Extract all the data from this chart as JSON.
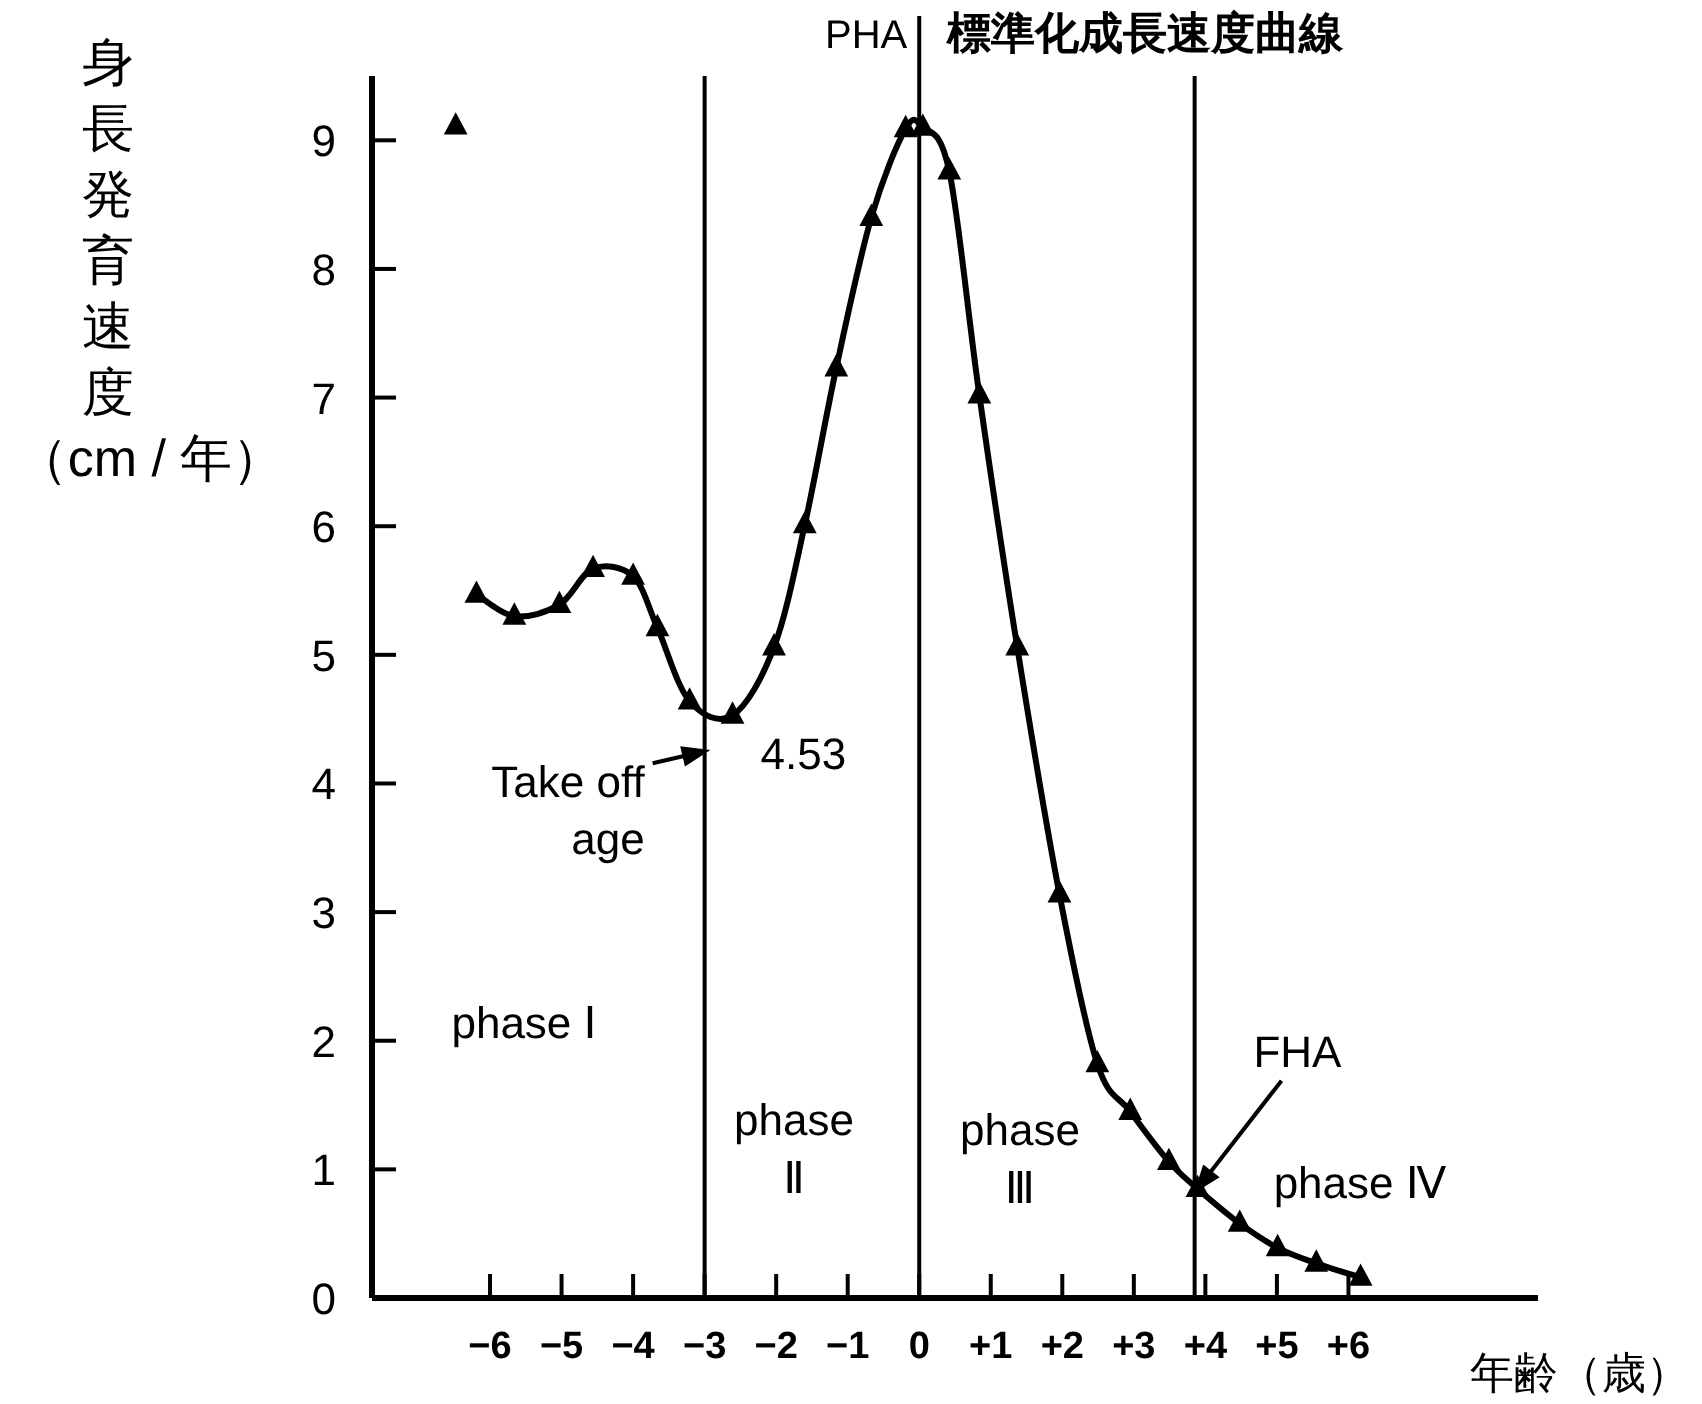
{
  "chart_data": {
    "type": "line",
    "title": "標準化成長速度曲線",
    "xlabel": "年齢（歳）",
    "ylabel": "身長発育速度（cm / 年）",
    "xlim": [
      -7.65,
      8.65
    ],
    "ylim": [
      0,
      9.5
    ],
    "xticks": [
      {
        "value": -6,
        "label": "−6"
      },
      {
        "value": -5,
        "label": "−5"
      },
      {
        "value": -4,
        "label": "−4"
      },
      {
        "value": -3,
        "label": "−3"
      },
      {
        "value": -2,
        "label": "−2"
      },
      {
        "value": -1,
        "label": "−1"
      },
      0,
      {
        "value": 1,
        "label": "+1"
      },
      {
        "value": 2,
        "label": "+2"
      },
      {
        "value": 3,
        "label": "+3"
      },
      {
        "value": 4,
        "label": "+4"
      },
      {
        "value": 5,
        "label": "+5"
      },
      {
        "value": 6,
        "label": "+6"
      }
    ],
    "yticks": [
      0,
      1,
      2,
      3,
      4,
      5,
      6,
      7,
      8,
      9
    ],
    "grid": false,
    "marker": "triangle",
    "line_style": "solid",
    "series": [
      {
        "type": "line",
        "color": "#000000",
        "x": [
          -6.19,
          -5.66,
          -5.03,
          -4.56,
          -4.0,
          -3.66,
          -3.21,
          -2.61,
          -2.03,
          -1.6,
          -1.16,
          -0.67,
          -0.19,
          0.05,
          0.42,
          0.84,
          1.37,
          1.96,
          2.49,
          2.95,
          3.49,
          3.89,
          4.48,
          5.01,
          5.55,
          6.17
        ],
        "values": [
          5.47,
          5.3,
          5.39,
          5.67,
          5.61,
          5.21,
          4.64,
          4.53,
          5.06,
          6.01,
          7.23,
          8.4,
          9.09,
          9.1,
          8.76,
          7.02,
          5.06,
          3.14,
          1.82,
          1.45,
          1.06,
          0.85,
          0.58,
          0.39,
          0.27,
          0.16
        ]
      },
      {
        "type": "scatter",
        "color": "#000000",
        "x": [
          -6.48
        ],
        "values": [
          9.11
        ]
      }
    ],
    "ref_lines": [
      {
        "axis": "x",
        "value": -3
      },
      {
        "axis": "x",
        "value": 0,
        "label": "PHA"
      },
      {
        "axis": "x",
        "value": 3.85
      }
    ],
    "annotations": [
      {
        "text": "4.53",
        "x": -2.61,
        "y": 4.53
      },
      {
        "text": "Take off\nage",
        "x": -3,
        "y": 4.25
      },
      {
        "text": "FHA",
        "x": 3.89,
        "y": 0.85
      },
      "phase Ⅰ",
      "phase\nⅡ",
      "phase\nⅢ",
      "phase Ⅳ"
    ]
  }
}
